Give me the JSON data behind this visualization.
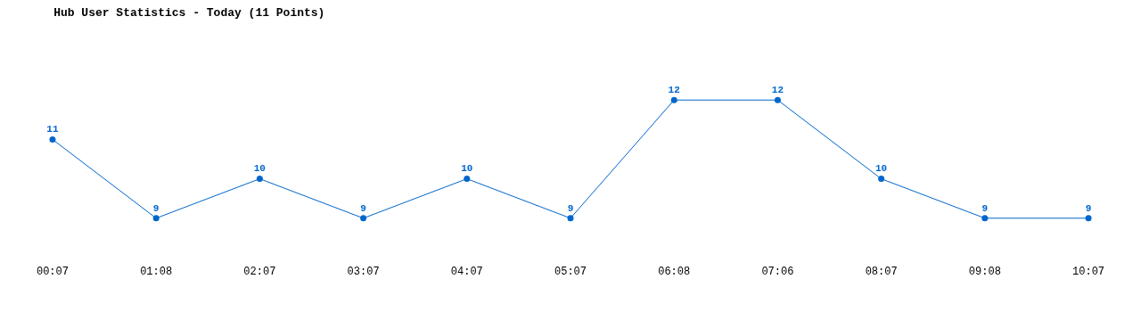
{
  "chart_data": {
    "type": "line",
    "title": "Hub User Statistics - Today (11 Points)",
    "categories": [
      "00:07",
      "01:08",
      "02:07",
      "03:07",
      "04:07",
      "05:07",
      "06:08",
      "07:06",
      "08:07",
      "09:08",
      "10:07"
    ],
    "series": [
      {
        "color": "#0066cc",
        "values": [
          11,
          9,
          10,
          9,
          10,
          9,
          12,
          12,
          10,
          9,
          9
        ]
      }
    ],
    "data_labels": true,
    "marker": "circle",
    "line_style": "solid"
  }
}
